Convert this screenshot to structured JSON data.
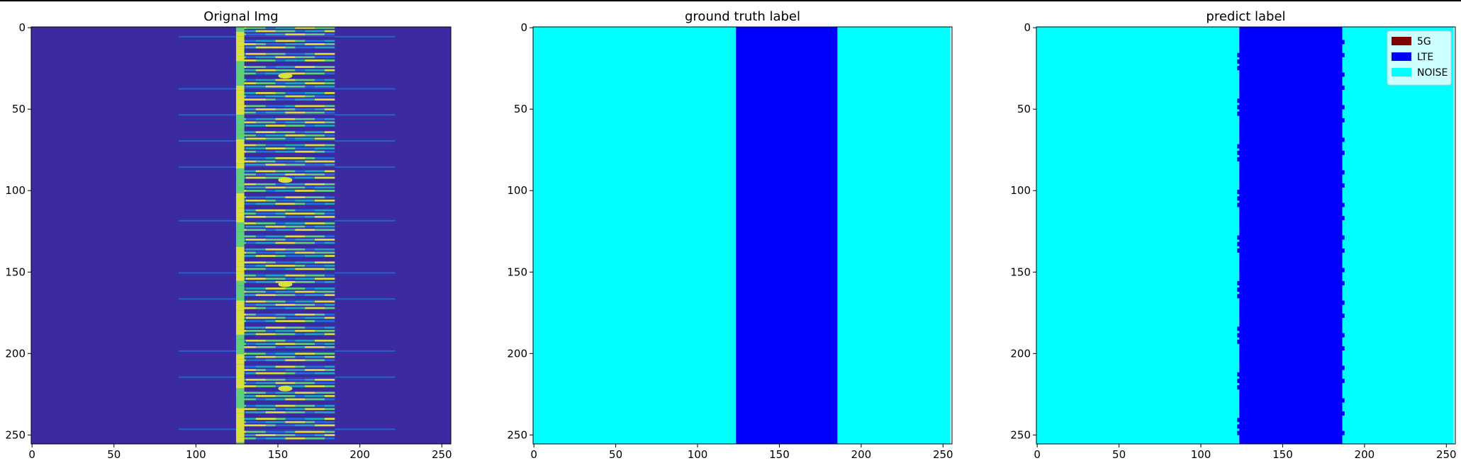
{
  "chart_data": [
    {
      "type": "heatmap",
      "title": "Orignal Img",
      "xlim": [
        0,
        255
      ],
      "ylim": [
        255,
        0
      ],
      "xticks": [
        0,
        50,
        100,
        150,
        200,
        250
      ],
      "yticks": [
        0,
        50,
        100,
        150,
        200,
        250
      ],
      "background_color": "#3b2aa0",
      "signal_band": [
        125,
        183
      ],
      "strong_column": [
        125,
        130
      ],
      "burst_rows": [
        6,
        38,
        54,
        70,
        86,
        119,
        151,
        167,
        199,
        215,
        247
      ],
      "burst_extent": [
        90,
        222
      ],
      "hot_spots": [
        [
          155,
          30
        ],
        [
          155,
          94
        ],
        [
          155,
          158
        ],
        [
          155,
          222
        ]
      ],
      "colormap": [
        "#3b2aa0",
        "#1f6fd8",
        "#1fa4c0",
        "#5ecf7a",
        "#d9e03a"
      ]
    },
    {
      "type": "heatmap",
      "title": "ground truth label",
      "xlim": [
        0,
        255
      ],
      "ylim": [
        255,
        0
      ],
      "xticks": [
        0,
        50,
        100,
        150,
        200,
        250
      ],
      "yticks": [
        0,
        50,
        100,
        150,
        200,
        250
      ],
      "regions": [
        {
          "class": "NOISE",
          "x": [
            0,
            124
          ]
        },
        {
          "class": "LTE",
          "x": [
            124,
            186
          ]
        },
        {
          "class": "NOISE",
          "x": [
            186,
            255
          ]
        }
      ]
    },
    {
      "type": "heatmap",
      "title": "predict label",
      "xlim": [
        0,
        255
      ],
      "ylim": [
        255,
        0
      ],
      "xticks": [
        0,
        50,
        100,
        150,
        200,
        250
      ],
      "yticks": [
        0,
        50,
        100,
        150,
        200,
        250
      ],
      "regions": [
        {
          "class": "NOISE",
          "x": [
            0,
            124
          ]
        },
        {
          "class": "LTE",
          "x": [
            124,
            187
          ]
        },
        {
          "class": "NOISE",
          "x": [
            187,
            255
          ]
        }
      ],
      "legend": {
        "placement": "top-right",
        "entries": [
          {
            "label": "5G",
            "color": "#800000"
          },
          {
            "label": "LTE",
            "color": "#0000ff"
          },
          {
            "label": "NOISE",
            "color": "#00ffff"
          }
        ]
      }
    }
  ],
  "class_colors": {
    "5G": "#800000",
    "LTE": "#0000ff",
    "NOISE": "#00ffff"
  }
}
